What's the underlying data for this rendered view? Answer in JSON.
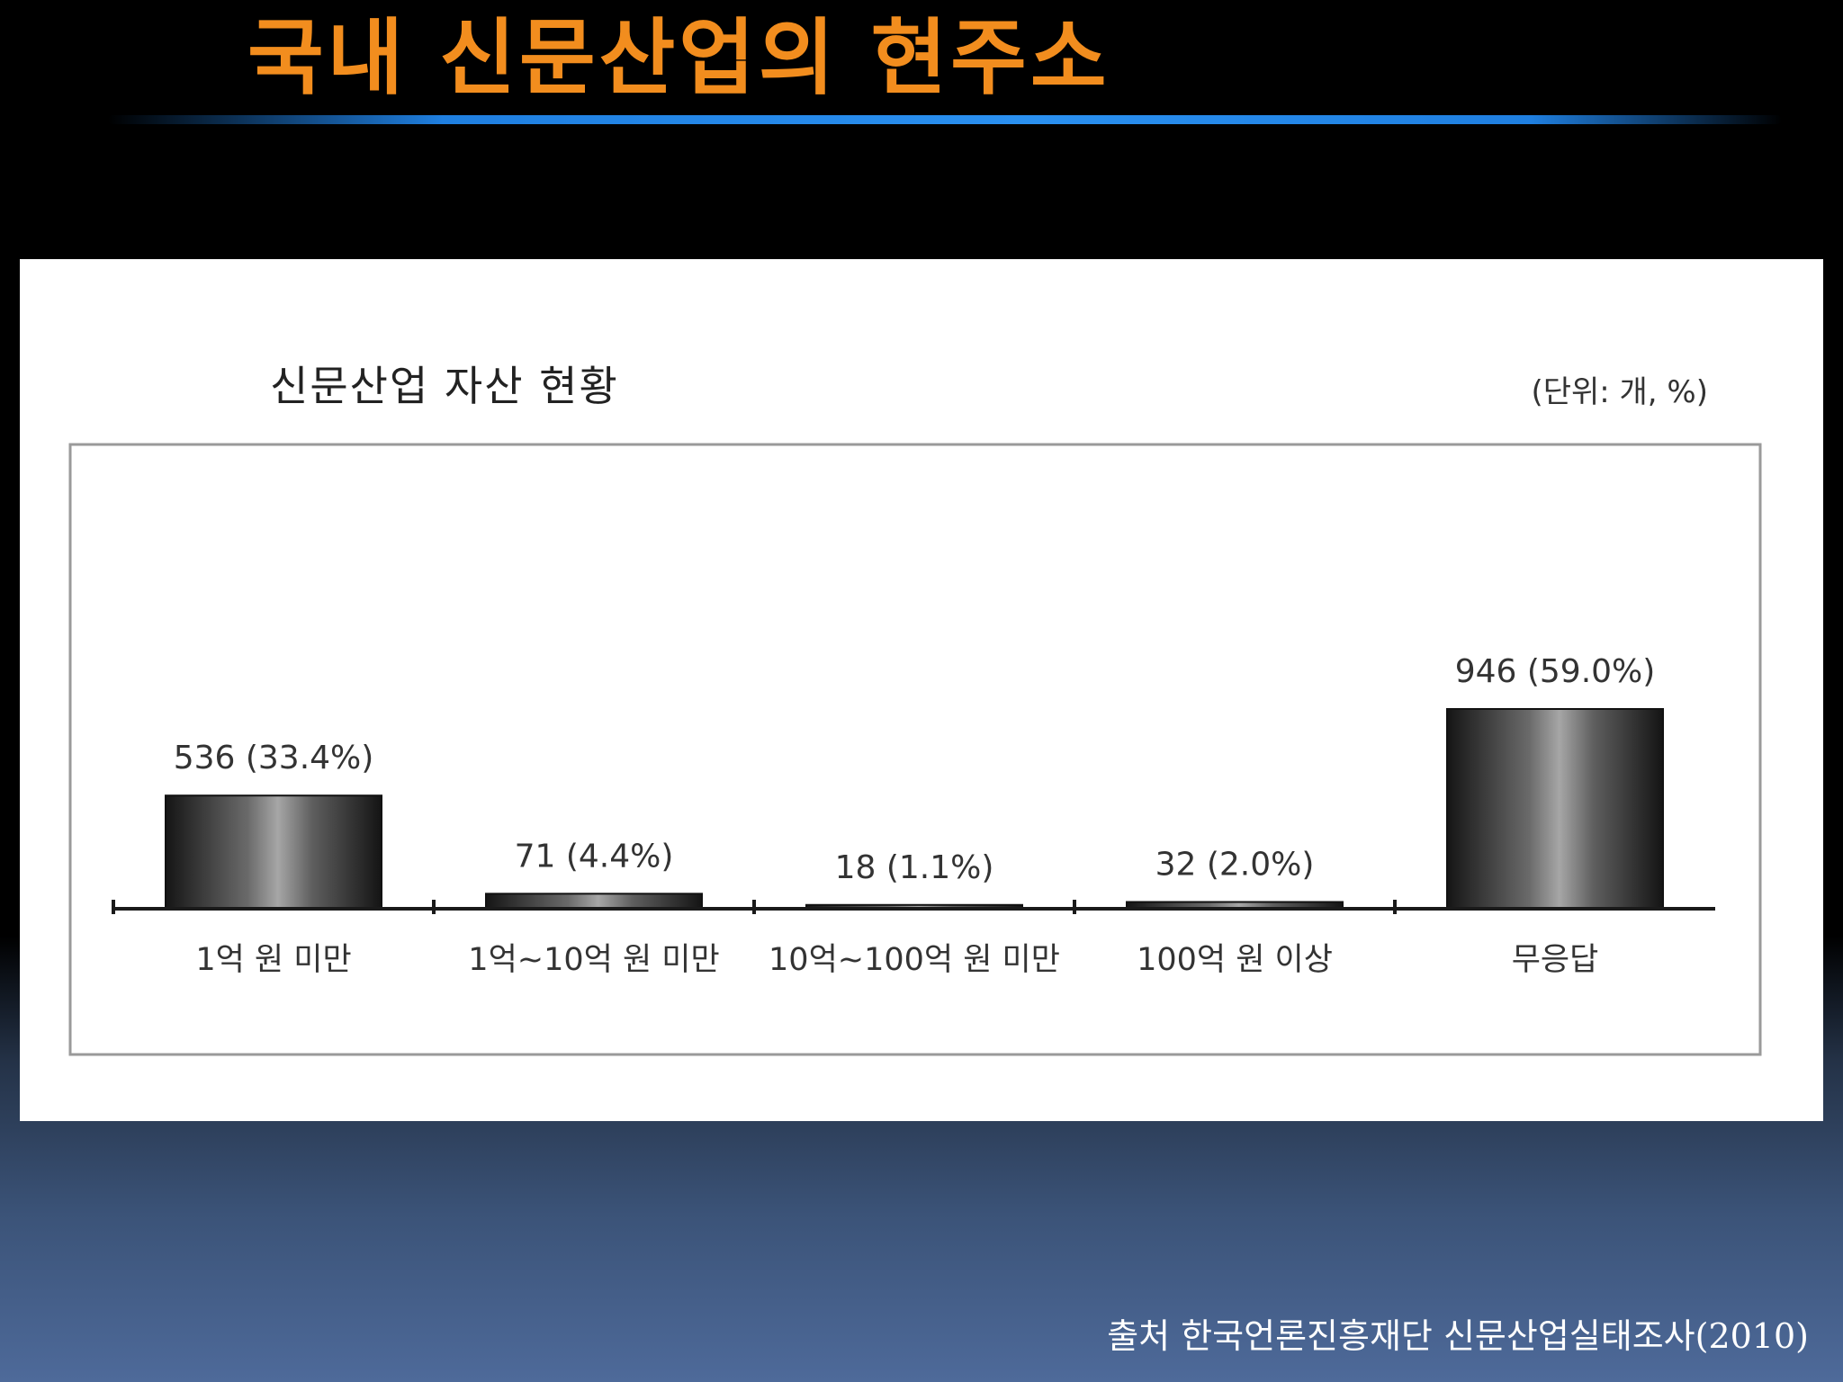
{
  "slide": {
    "title": "국내 신문산업의 현주소",
    "source": "출처 한국언론진흥재단 신문산업실태조사(2010)"
  },
  "colors": {
    "title": "#f28d1e",
    "rule": "#1f7fe0",
    "bar_dark": "#1a1a1a",
    "bar_light": "#9a9a9a"
  },
  "chart_data": {
    "type": "bar",
    "title": "신문산업 자산 현황",
    "unit": "(단위: 개, %)",
    "categories": [
      "1억 원 미만",
      "1억~10억 원 미만",
      "10억~100억 원 미만",
      "100억 원 이상",
      "무응답"
    ],
    "values": [
      536,
      71,
      18,
      32,
      946
    ],
    "percents": [
      33.4,
      4.4,
      1.1,
      2.0,
      59.0
    ],
    "data_labels": [
      "536 (33.4%)",
      "71 (4.4%)",
      "18 (1.1%)",
      "32 (2.0%)",
      "946 (59.0%)"
    ],
    "ylim": [
      0,
      946
    ],
    "grid": false,
    "legend": "none"
  }
}
